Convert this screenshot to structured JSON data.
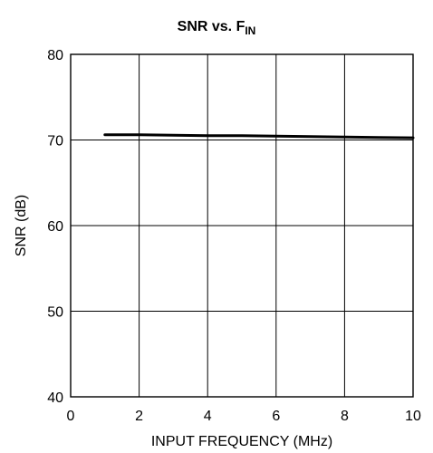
{
  "chart_data": {
    "type": "line",
    "title": {
      "main": "SNR vs. F",
      "subscript": "IN"
    },
    "xlabel": "INPUT FREQUENCY (MHz)",
    "ylabel": "SNR (dB)",
    "xlim": [
      0,
      10
    ],
    "ylim": [
      40,
      80
    ],
    "x_ticks": [
      0,
      2,
      4,
      6,
      8,
      10
    ],
    "y_ticks": [
      40,
      50,
      60,
      70,
      80
    ],
    "grid": true,
    "series": [
      {
        "x": [
          1,
          2,
          3,
          4,
          5,
          6,
          7,
          8,
          9,
          10
        ],
        "y": [
          70.6,
          70.6,
          70.55,
          70.5,
          70.5,
          70.45,
          70.4,
          70.35,
          70.3,
          70.25
        ]
      }
    ],
    "colors": {
      "line": "#000000",
      "grid": "#000000",
      "background": "#ffffff"
    }
  }
}
